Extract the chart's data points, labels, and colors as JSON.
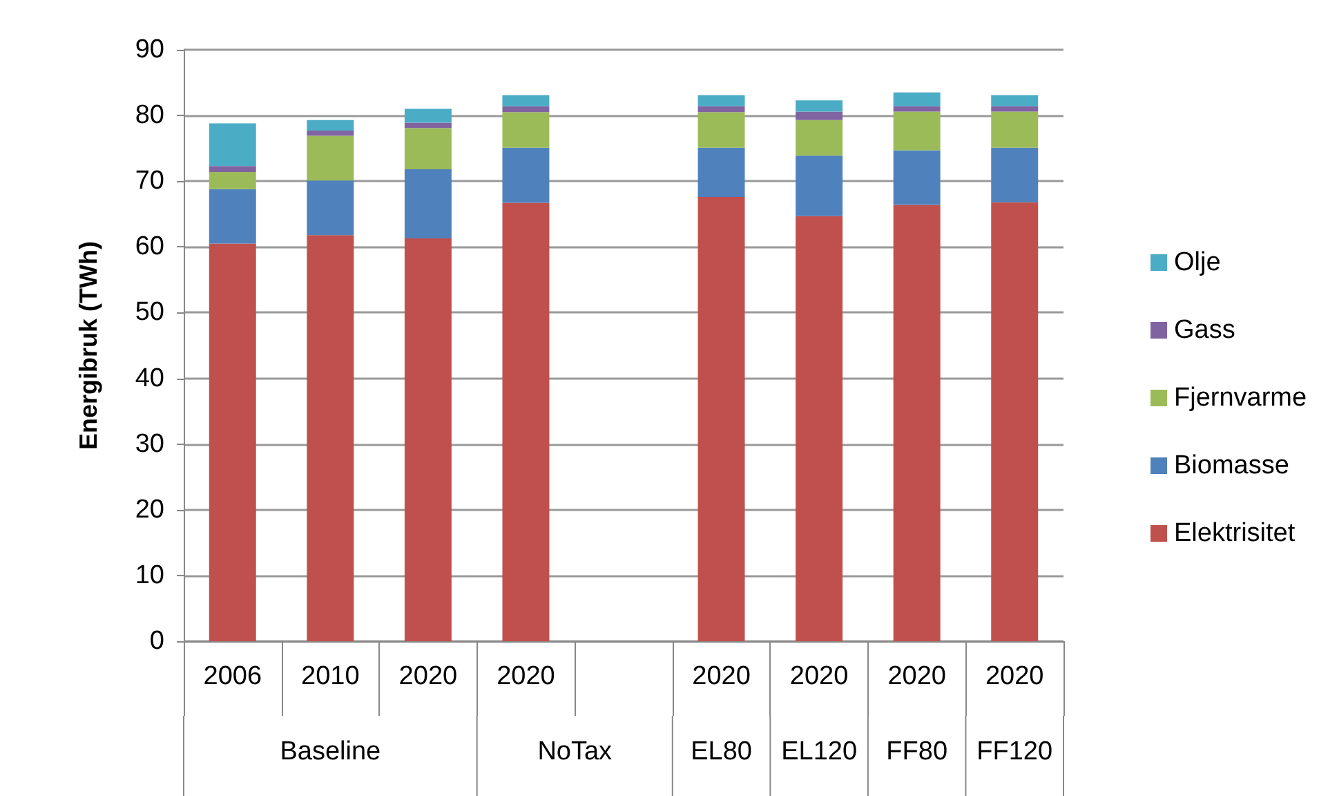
{
  "chart_data": {
    "type": "bar",
    "stacked": true,
    "ylabel": "Energibruk (TWh)",
    "categories": [
      "2006",
      "2010",
      "2020",
      "2020",
      null,
      "2020",
      "2020",
      "2020",
      "2020"
    ],
    "annotations": [
      "Baseline",
      "NoTax",
      "EL80",
      "EL120",
      "FF80",
      "FF120"
    ],
    "ylim": [
      0,
      90
    ],
    "yticks": [
      0,
      10,
      20,
      30,
      40,
      50,
      60,
      70,
      80,
      90
    ],
    "grid": "y",
    "legend": "right",
    "series": [
      {
        "name": "Elektrisitet",
        "color": "#c0504d",
        "values": [
          60.5,
          61.8,
          61.3,
          66.7,
          null,
          67.6,
          64.7,
          66.4,
          66.8
        ]
      },
      {
        "name": "Biomasse",
        "color": "#4f81bd",
        "values": [
          8.3,
          8.3,
          10.5,
          8.4,
          null,
          7.5,
          9.2,
          8.3,
          8.3
        ]
      },
      {
        "name": "Fjernvarme",
        "color": "#9bbb59",
        "values": [
          2.6,
          6.8,
          6.3,
          5.4,
          null,
          5.4,
          5.4,
          5.9,
          5.5
        ]
      },
      {
        "name": "Gass",
        "color": "#8064a2",
        "values": [
          0.9,
          0.8,
          0.8,
          0.9,
          null,
          0.9,
          1.3,
          0.8,
          0.8
        ]
      },
      {
        "name": "Olje",
        "color": "#4bacc6",
        "values": [
          6.5,
          1.6,
          2.1,
          1.7,
          null,
          1.7,
          1.7,
          2.1,
          1.7
        ]
      }
    ]
  }
}
